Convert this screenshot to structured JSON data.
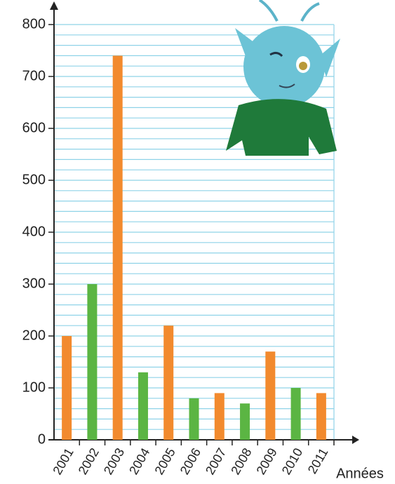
{
  "chart_data": {
    "type": "bar",
    "x_label": "Années",
    "categories": [
      "2001",
      "2002",
      "2003",
      "2004",
      "2005",
      "2006",
      "2007",
      "2008",
      "2009",
      "2010",
      "2011"
    ],
    "values": [
      200,
      300,
      740,
      130,
      220,
      80,
      90,
      70,
      170,
      100,
      90
    ],
    "colors": [
      "#f28a2e",
      "#5bb543",
      "#f28a2e",
      "#5bb543",
      "#f28a2e",
      "#5bb543",
      "#f28a2e",
      "#5bb543",
      "#f28a2e",
      "#5bb543",
      "#f28a2e"
    ],
    "ylim": [
      0,
      800
    ],
    "yticks": [
      0,
      100,
      200,
      300,
      400,
      500,
      600,
      700,
      800
    ],
    "minor_yticks": [
      20,
      40,
      60,
      80,
      120,
      140,
      160,
      180,
      220,
      240,
      260,
      280,
      320,
      340,
      360,
      380,
      420,
      440,
      460,
      480,
      520,
      540,
      560,
      580,
      620,
      640,
      660,
      680,
      720,
      740,
      760,
      780
    ],
    "grid": true
  }
}
